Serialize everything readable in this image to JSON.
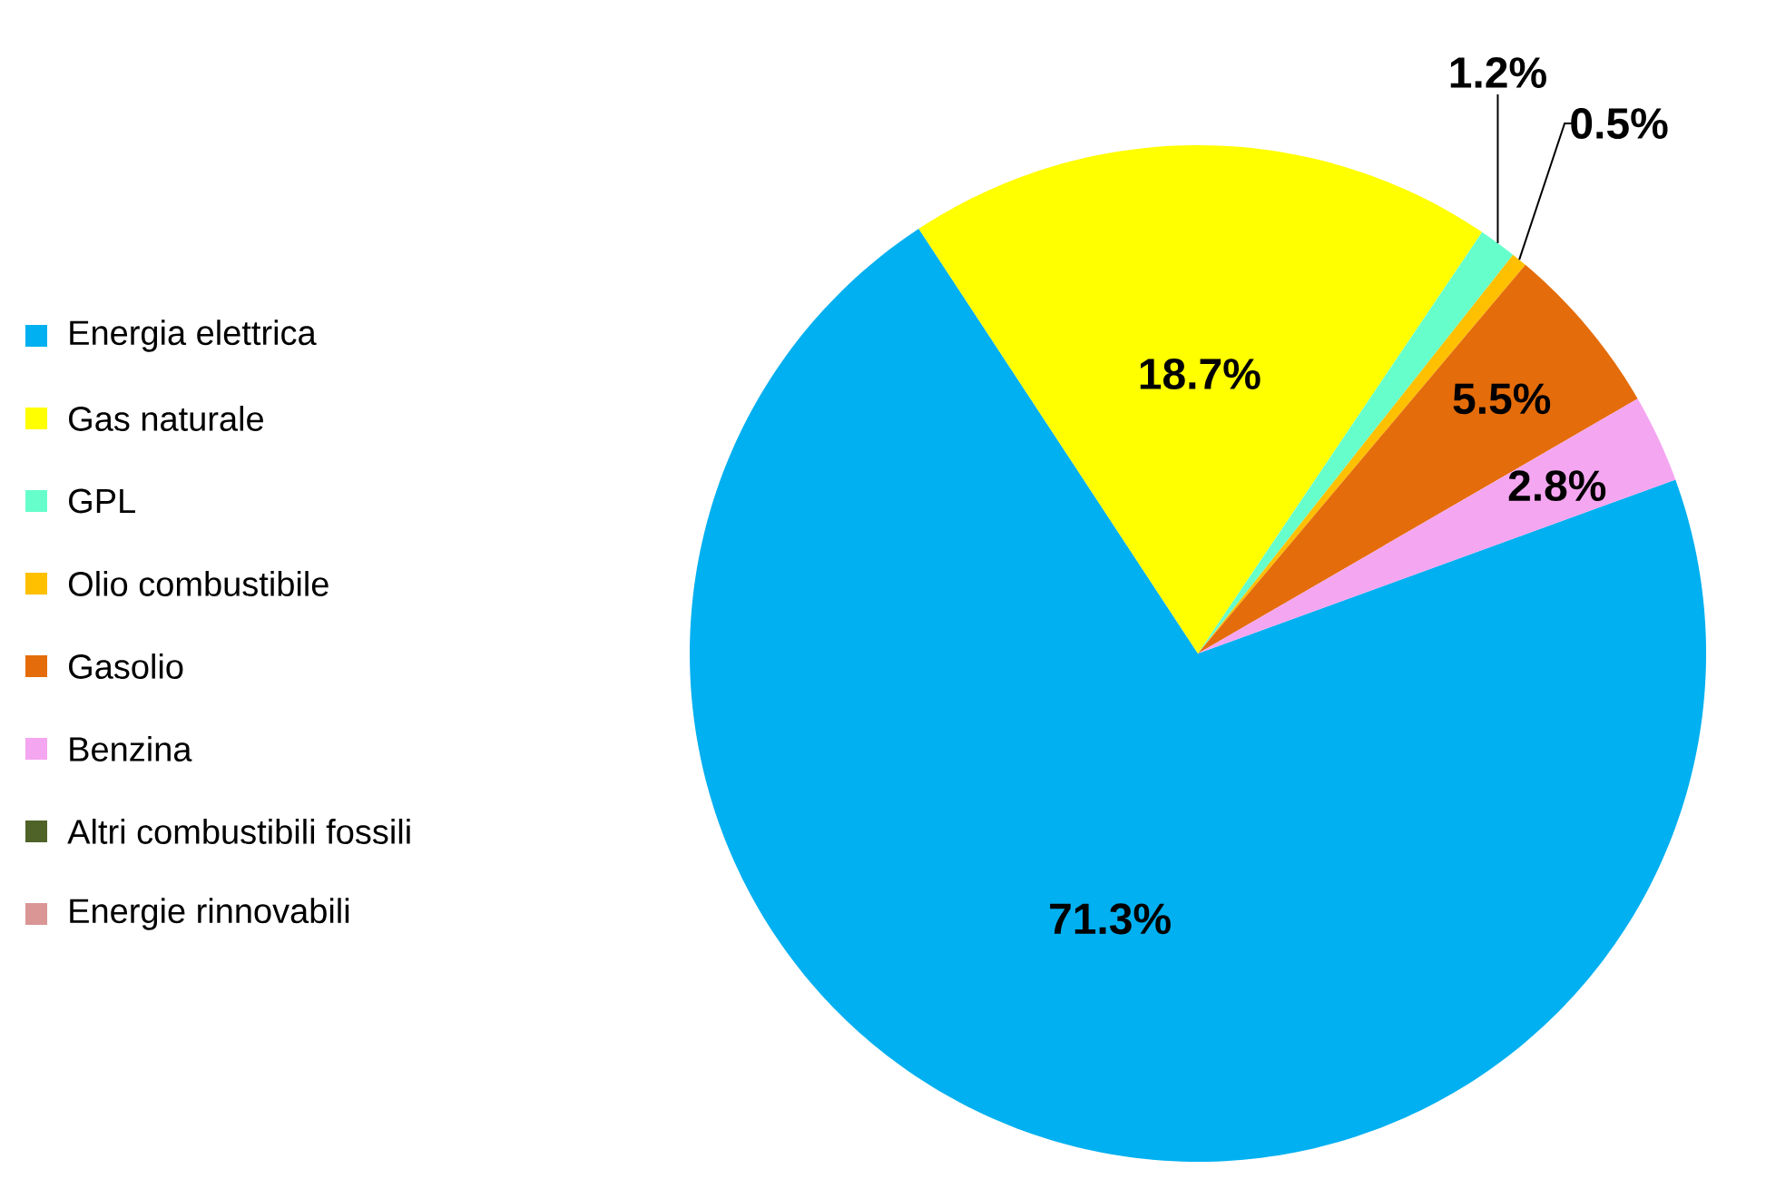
{
  "chart_data": {
    "type": "pie",
    "categories": [
      "Energia elettrica",
      "Gas naturale",
      "GPL",
      "Olio combustibile",
      "Gasolio",
      "Benzina",
      "Altri combustibili fossili",
      "Energie rinnovabili"
    ],
    "values": [
      71.3,
      18.7,
      1.2,
      0.5,
      5.5,
      2.8,
      0,
      0
    ],
    "colors": [
      "#00b0f0",
      "#ffff00",
      "#66ffcc",
      "#ffc000",
      "#e46c0a",
      "#f4a6f0",
      "#4f6228",
      "#d99694"
    ],
    "value_labels": [
      "71.3%",
      "18.7%",
      "1.2%",
      "0.5%",
      "5.5%",
      "2.8%",
      null,
      null
    ],
    "legend": "left"
  }
}
